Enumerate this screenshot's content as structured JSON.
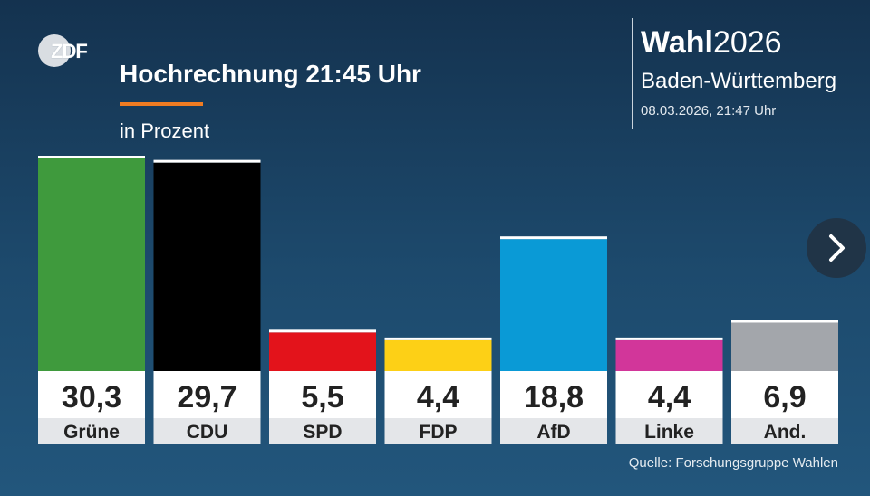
{
  "brand": {
    "logo_text": "ZDF"
  },
  "header": {
    "title": "Hochrechnung 21:45 Uhr",
    "subtitle": "in Prozent"
  },
  "election": {
    "name_bold": "Wahl",
    "name_year": "2026",
    "region": "Baden-Württemberg",
    "timestamp": "08.03.2026, 21:47 Uhr"
  },
  "nav": {
    "next_icon": "chevron-right-icon"
  },
  "footer": {
    "source": "Quelle: Forschungsgruppe Wahlen"
  },
  "chart_data": {
    "type": "bar",
    "title": "Hochrechnung 21:45 Uhr",
    "subtitle": "in Prozent",
    "ylabel": "",
    "xlabel": "",
    "ylim": [
      0,
      30.3
    ],
    "grid": false,
    "categories": [
      "Grüne",
      "CDU",
      "SPD",
      "FDP",
      "AfD",
      "Linke",
      "And."
    ],
    "values": [
      30.3,
      29.7,
      5.5,
      4.4,
      18.8,
      4.4,
      6.9
    ],
    "value_labels": [
      "30,3",
      "29,7",
      "5,5",
      "4,4",
      "18,8",
      "4,4",
      "6,9"
    ],
    "colors": [
      "#3f9a3d",
      "#000000",
      "#e3131b",
      "#fdd016",
      "#0a9ad6",
      "#d2369a",
      "#a3a6ab"
    ]
  }
}
